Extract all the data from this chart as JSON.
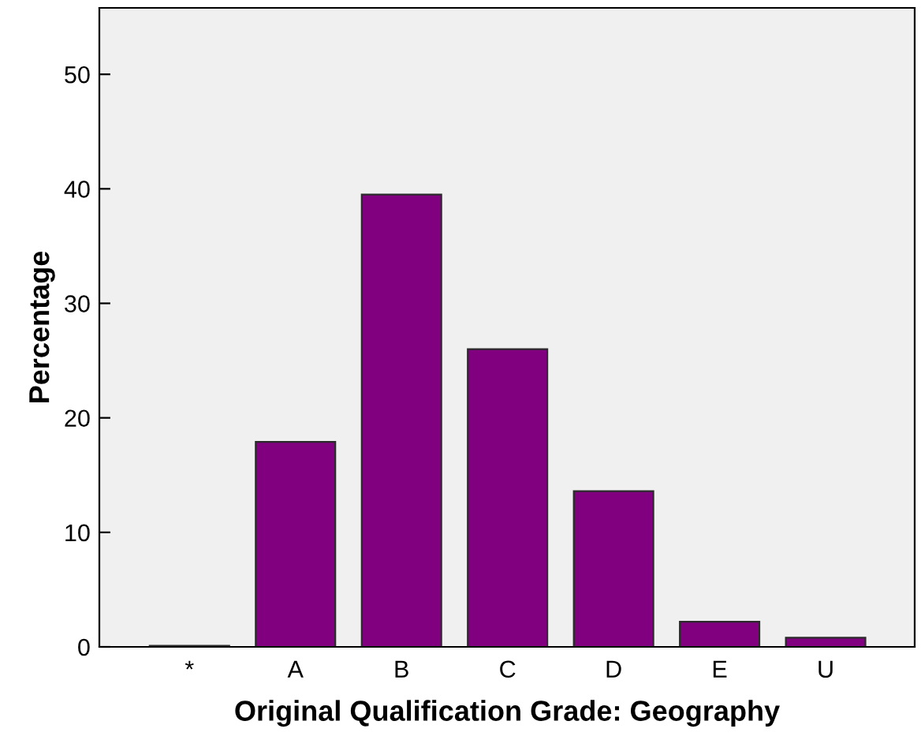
{
  "chart_data": {
    "type": "bar",
    "xlabel": "Original Qualification Grade: Geography",
    "ylabel": "Percentage",
    "categories": [
      "*",
      "A",
      "B",
      "C",
      "D",
      "E",
      "U"
    ],
    "values": [
      0.1,
      17.9,
      39.5,
      26.0,
      13.6,
      2.2,
      0.8
    ],
    "color": "#800080",
    "ylim": [
      0,
      55.8
    ],
    "yticks": [
      0,
      10,
      20,
      30,
      40,
      50
    ],
    "grid": false
  }
}
